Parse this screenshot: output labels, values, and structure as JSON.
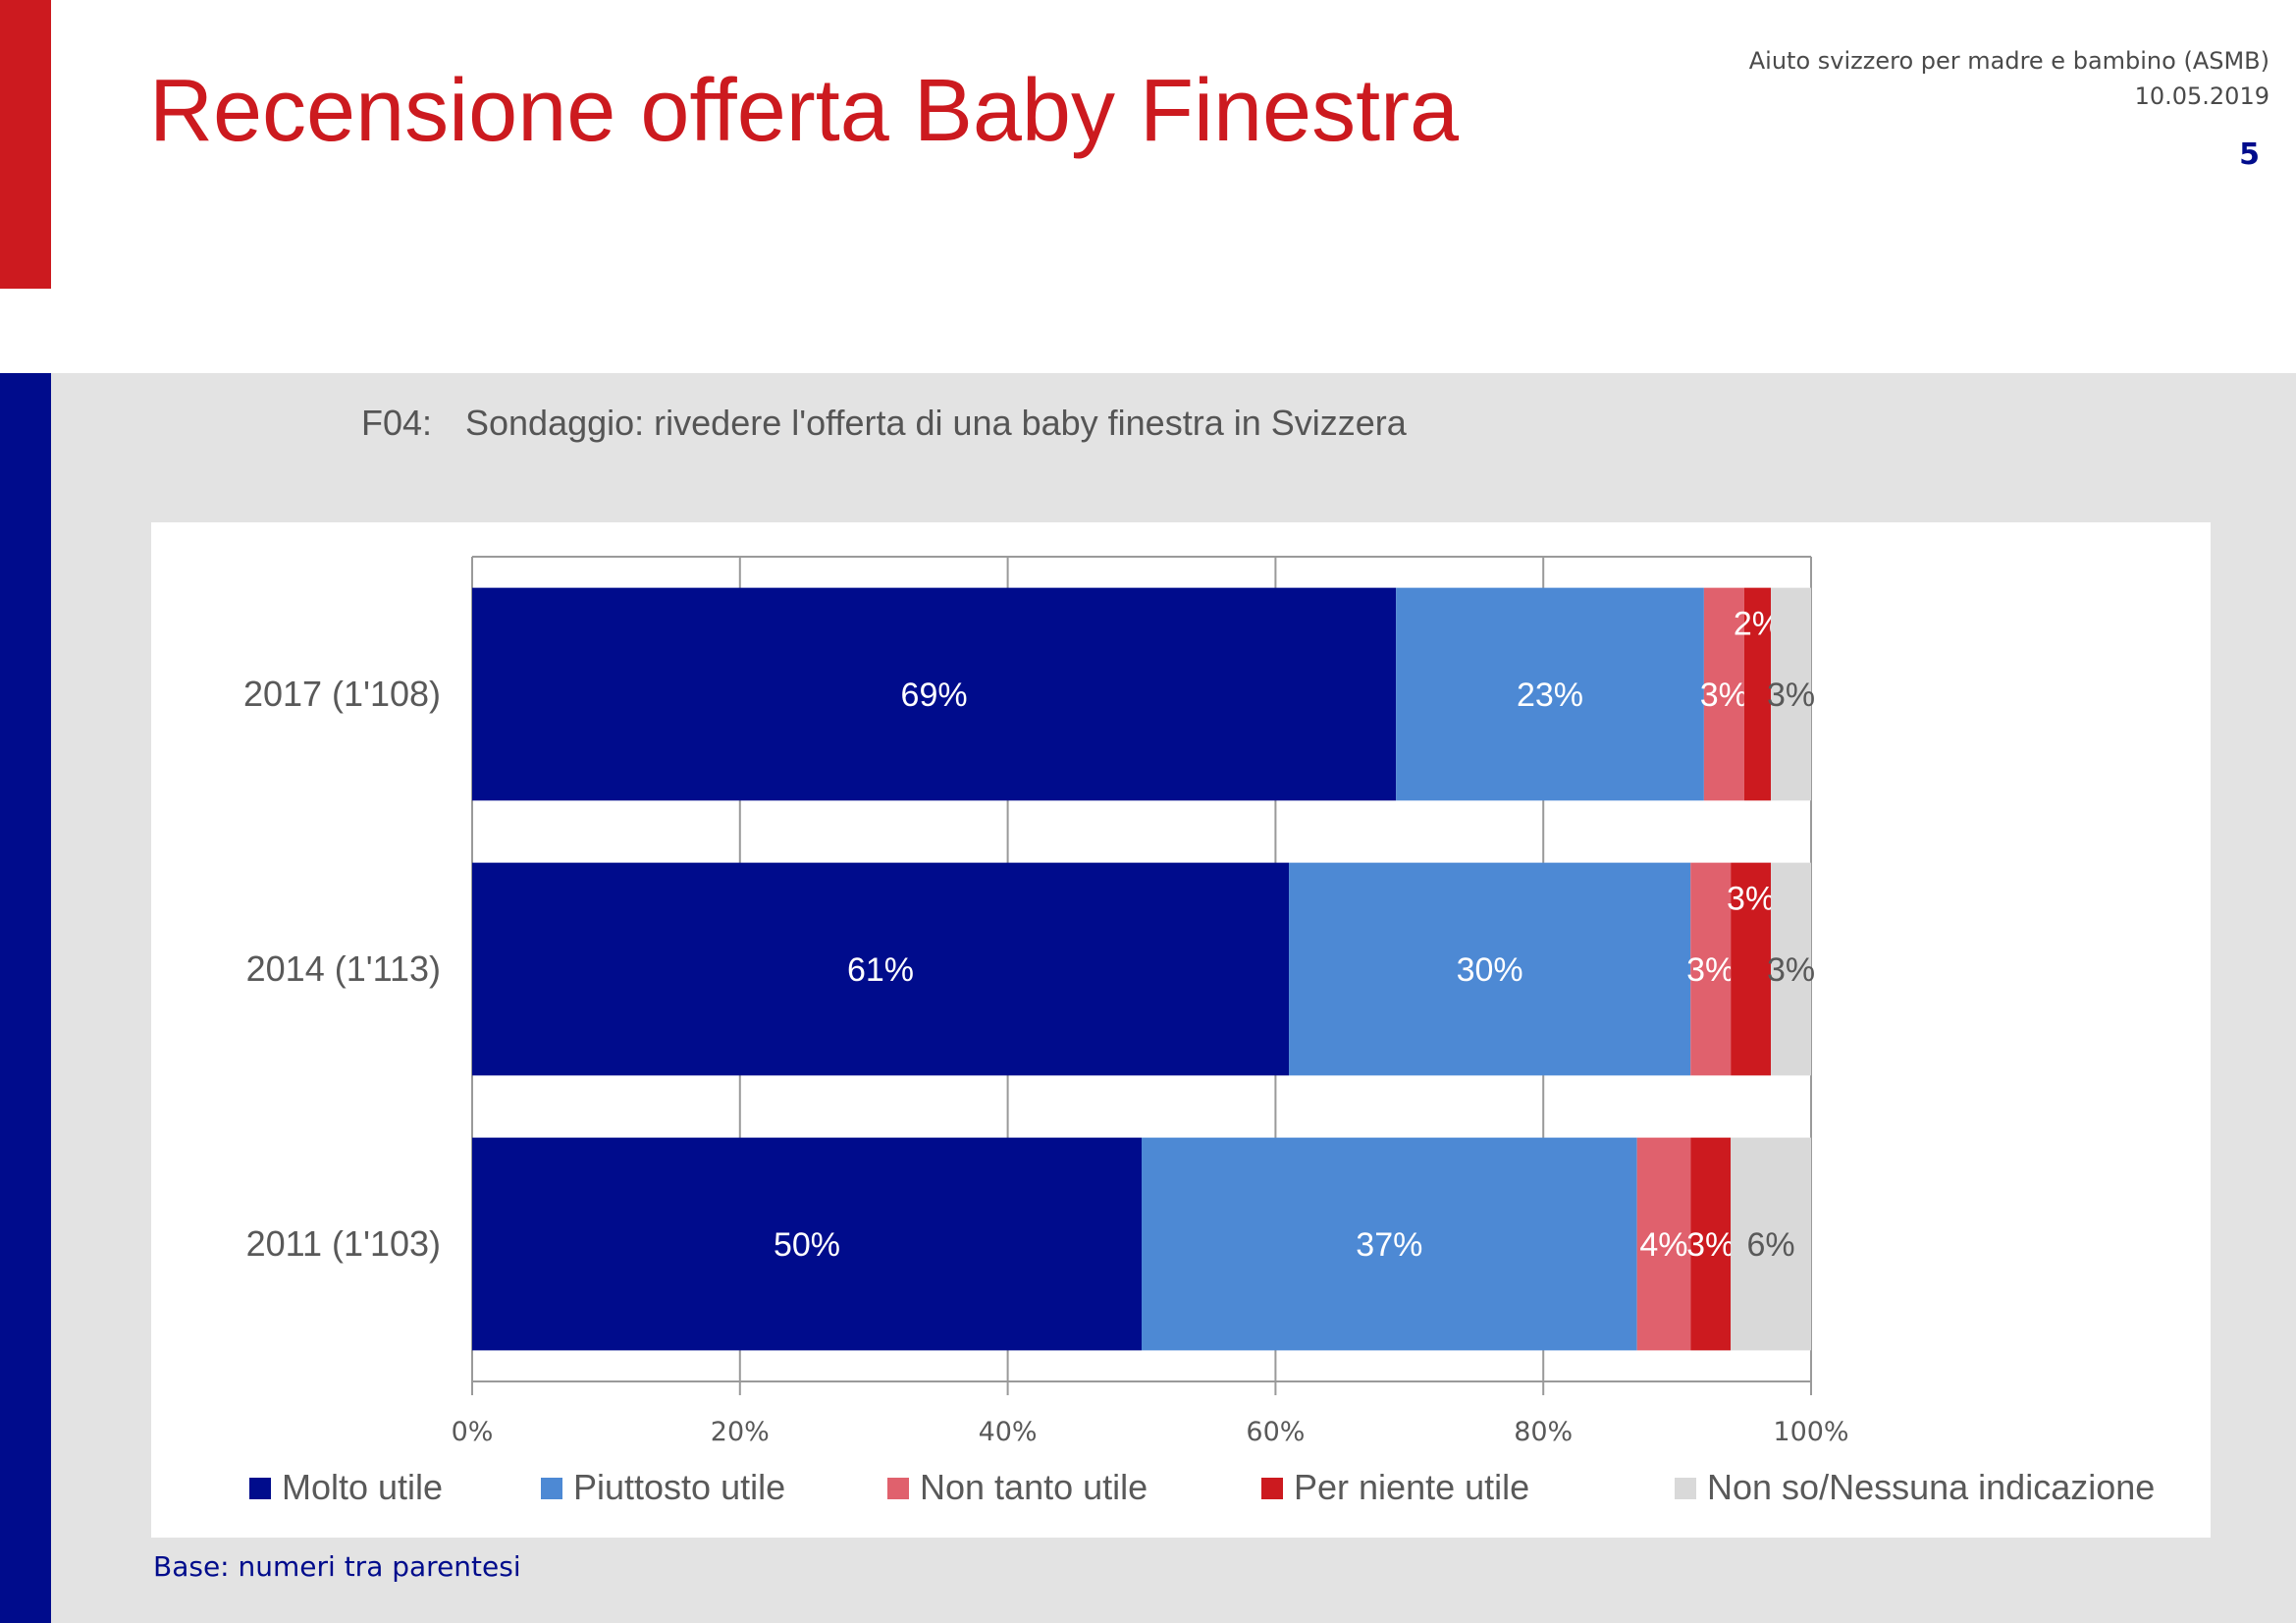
{
  "header": {
    "title": "Recensione offerta Baby Finestra",
    "organization": "Aiuto svizzero per madre e bambino (ASMB)",
    "date": "10.05.2019",
    "page_number": "5"
  },
  "question": {
    "code": "F04:",
    "text": "Sondaggio: rivedere l'offerta di una baby finestra in Svizzera"
  },
  "footer": {
    "base_note": "Base: numeri tra parentesi"
  },
  "colors": {
    "title_red": "#cc1a1f",
    "sidebar_blue": "#000c8c",
    "panel_gray": "#e3e3e3"
  },
  "chart_data": {
    "type": "bar",
    "orientation": "horizontal",
    "stacked": true,
    "categories": [
      "2017 (1'108)",
      "2014 (1'113)",
      "2011 (1'103)"
    ],
    "series": [
      {
        "name": "Molto utile",
        "color": "#000c8c",
        "values": [
          69,
          61,
          50
        ],
        "labels": [
          "69%",
          "61%",
          "50%"
        ]
      },
      {
        "name": "Piuttosto utile",
        "color": "#4d89d4",
        "values": [
          23,
          30,
          37
        ],
        "labels": [
          "23%",
          "30%",
          "37%"
        ]
      },
      {
        "name": "Non tanto utile",
        "color": "#e0616d",
        "values": [
          3,
          3,
          4
        ],
        "labels": [
          "3%",
          "3%",
          "4%"
        ]
      },
      {
        "name": "Per niente utile",
        "color": "#cc1a1f",
        "values": [
          2,
          3,
          3
        ],
        "labels": [
          "2%",
          "3%",
          "3%"
        ]
      },
      {
        "name": "Non so/Nessuna indicazione",
        "color": "#d9d9d9",
        "values": [
          3,
          3,
          6
        ],
        "labels": [
          "3%",
          "3%",
          "6%"
        ]
      }
    ],
    "xlim": [
      0,
      100
    ],
    "xticks": [
      "0%",
      "20%",
      "40%",
      "60%",
      "80%",
      "100%"
    ],
    "grid": true,
    "legend_position": "bottom"
  }
}
